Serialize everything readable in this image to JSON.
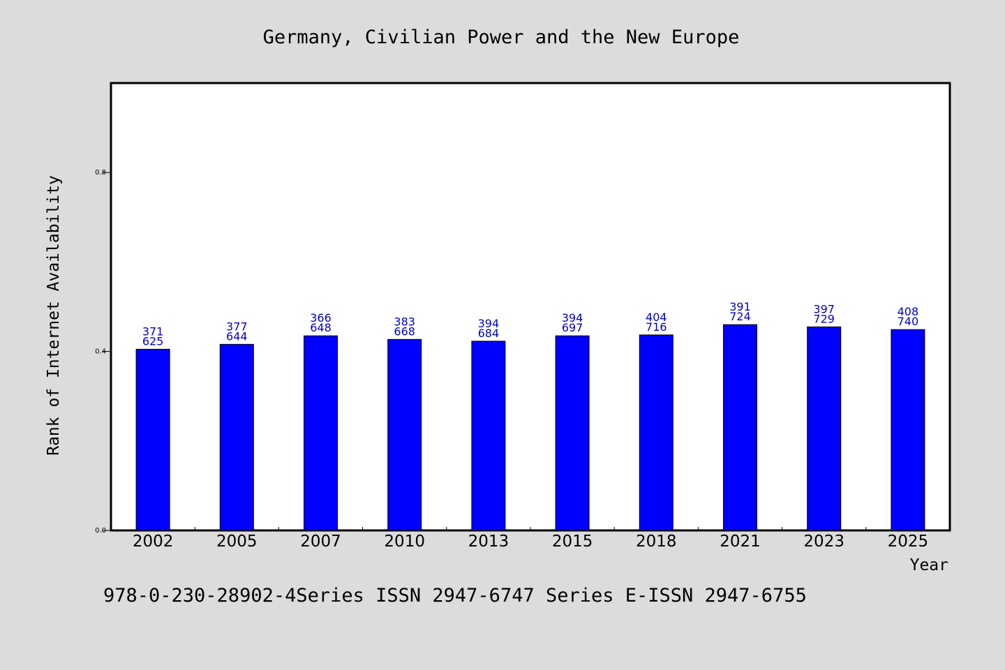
{
  "chart_data": {
    "type": "bar",
    "title": "Germany, Civilian Power and the New Europe",
    "xlabel": "Year",
    "ylabel": "Rank of Internet Availability",
    "ylim": [
      0,
      1.0
    ],
    "yticks": [
      "0.0",
      "0.4",
      "0.8"
    ],
    "ytick_values": [
      0.0,
      0.4,
      0.8
    ],
    "categories": [
      "2002",
      "2005",
      "2007",
      "2010",
      "2013",
      "2015",
      "2018",
      "2021",
      "2023",
      "2025"
    ],
    "values": [
      0.405,
      0.416,
      0.435,
      0.427,
      0.423,
      0.435,
      0.437,
      0.46,
      0.455,
      0.449
    ],
    "labels_top": [
      "371",
      "377",
      "366",
      "383",
      "394",
      "394",
      "404",
      "391",
      "397",
      "408"
    ],
    "labels_bottom": [
      "625",
      "644",
      "648",
      "668",
      "684",
      "697",
      "716",
      "724",
      "729",
      "740"
    ],
    "bar_color": "#0000ff",
    "label_color": "#0000cc",
    "grid": false,
    "legend": "none"
  },
  "footer": {
    "text": "978-0-230-28902-4Series ISSN 2947-6747 Series E-ISSN 2947-6755"
  }
}
